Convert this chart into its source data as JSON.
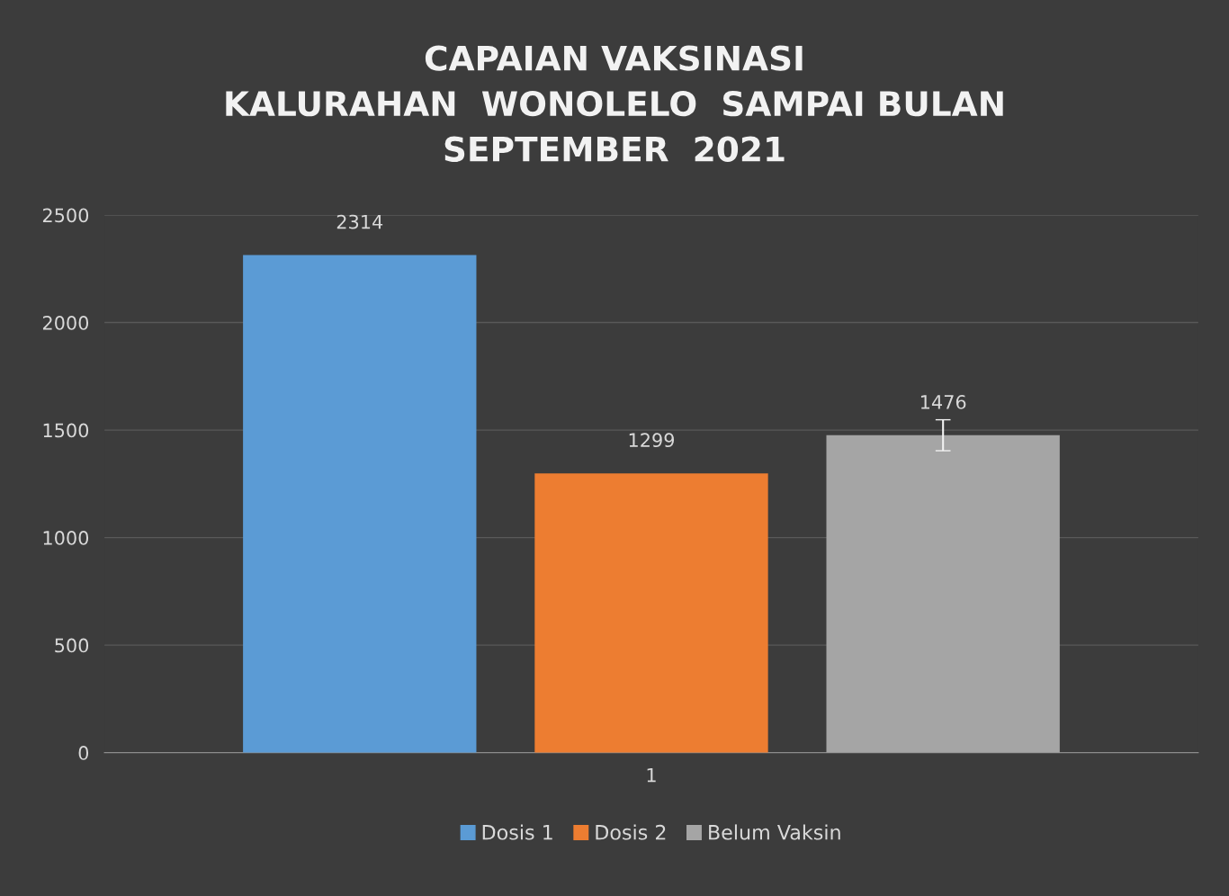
{
  "chart_data": {
    "type": "bar",
    "title": "CAPAIAN VAKSINASI\nKALURAHAN  WONOLELO  SAMPAI BULAN\nSEPTEMBER  2021",
    "categories": [
      "1"
    ],
    "series": [
      {
        "name": "Dosis 1",
        "color": "#5b9bd5",
        "values": [
          2314
        ]
      },
      {
        "name": "Dosis 2",
        "color": "#ed7d31",
        "values": [
          1299
        ]
      },
      {
        "name": "Belum Vaksin",
        "color": "#a5a5a5",
        "values": [
          1476
        ],
        "errors": [
          72
        ]
      }
    ],
    "ylim": [
      0,
      2500
    ],
    "yticks": [
      0,
      500,
      1000,
      1500,
      2000,
      2500
    ],
    "grid": "y",
    "data_labels": true,
    "legend": "bottom"
  }
}
